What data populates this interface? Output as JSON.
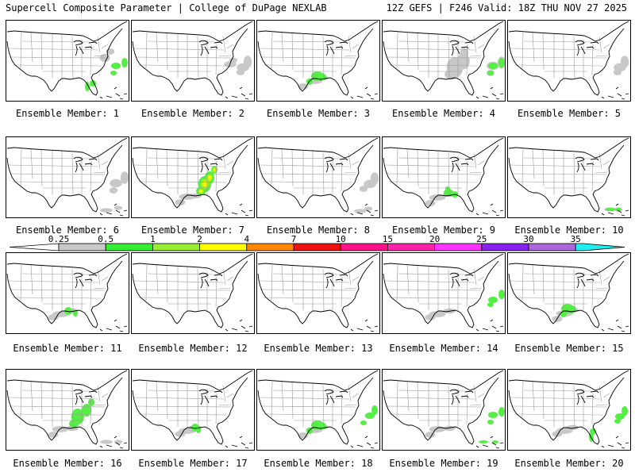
{
  "header": {
    "left": "Supercell Composite Parameter | College of DuPage NEXLAB",
    "right": "12Z GEFS | F246 Valid: 18Z THU NOV 27 2025"
  },
  "colors": {
    "land_outline": "#000000",
    "state_lines": "#999999",
    "gray_shade": "#c8c8c8",
    "green_shade": "#55ee44",
    "lime_shade": "#aaee22",
    "yellow_shade": "#f6f600"
  },
  "colorbar": {
    "labels": [
      "0.25",
      "0.5",
      "1",
      "2",
      "4",
      "7",
      "10",
      "15",
      "20",
      "25",
      "30",
      "35"
    ],
    "colors": [
      "#c8c8c8",
      "#33ee33",
      "#99ee33",
      "#ffff00",
      "#ff8800",
      "#ee1111",
      "#ff1188",
      "#ff22aa",
      "#ff33ff",
      "#8822ee",
      "#aa66dd",
      "#22eeee"
    ]
  },
  "members": [
    {
      "label": "Ensemble Member: 1",
      "scp": [
        {
          "level": "gray",
          "region": "east-coast"
        },
        {
          "level": "green",
          "region": "atlantic"
        },
        {
          "level": "green",
          "region": "florida"
        }
      ]
    },
    {
      "label": "Ensemble Member: 2",
      "scp": [
        {
          "level": "gray",
          "region": "atlantic"
        },
        {
          "level": "gray",
          "region": "mid-atlantic"
        }
      ]
    },
    {
      "label": "Ensemble Member: 3",
      "scp": [
        {
          "level": "gray",
          "region": "gulf-coast"
        },
        {
          "level": "green",
          "region": "texas-louisiana"
        }
      ]
    },
    {
      "label": "Ensemble Member: 4",
      "scp": [
        {
          "level": "gray",
          "region": "atlantic"
        },
        {
          "level": "green",
          "region": "atlantic"
        },
        {
          "level": "gray",
          "region": "southeast"
        }
      ]
    },
    {
      "label": "Ensemble Member: 5",
      "scp": [
        {
          "level": "gray",
          "region": "atlantic"
        }
      ]
    },
    {
      "label": "Ensemble Member: 6",
      "scp": [
        {
          "level": "gray",
          "region": "atlantic"
        },
        {
          "level": "gray",
          "region": "caribbean"
        }
      ]
    },
    {
      "label": "Ensemble Member: 7",
      "scp": [
        {
          "level": "green",
          "region": "southeast"
        },
        {
          "level": "lime",
          "region": "southeast"
        },
        {
          "level": "yellow",
          "region": "southeast"
        },
        {
          "level": "gray",
          "region": "gulf-coast"
        }
      ]
    },
    {
      "label": "Ensemble Member: 8",
      "scp": [
        {
          "level": "gray",
          "region": "caribbean"
        },
        {
          "level": "gray",
          "region": "atlantic"
        }
      ]
    },
    {
      "label": "Ensemble Member: 9",
      "scp": [
        {
          "level": "green",
          "region": "louisiana-mississippi"
        },
        {
          "level": "gray",
          "region": "gulf-coast"
        }
      ]
    },
    {
      "label": "Ensemble Member: 10",
      "scp": [
        {
          "level": "gray",
          "region": "caribbean"
        },
        {
          "level": "green",
          "region": "caribbean"
        }
      ]
    },
    {
      "label": "Ensemble Member: 11",
      "scp": [
        {
          "level": "green",
          "region": "louisiana"
        },
        {
          "level": "gray",
          "region": "gulf-coast"
        }
      ]
    },
    {
      "label": "Ensemble Member: 12",
      "scp": []
    },
    {
      "label": "Ensemble Member: 13",
      "scp": []
    },
    {
      "label": "Ensemble Member: 14",
      "scp": [
        {
          "level": "gray",
          "region": "gulf-coast"
        },
        {
          "level": "green",
          "region": "atlantic"
        }
      ]
    },
    {
      "label": "Ensemble Member: 15",
      "scp": [
        {
          "level": "green",
          "region": "texas-louisiana"
        },
        {
          "level": "gray",
          "region": "gulf-coast"
        }
      ]
    },
    {
      "label": "Ensemble Member: 16",
      "scp": [
        {
          "level": "green",
          "region": "southeast"
        },
        {
          "level": "gray",
          "region": "gulf-coast"
        },
        {
          "level": "gray",
          "region": "caribbean"
        }
      ]
    },
    {
      "label": "Ensemble Member: 17",
      "scp": [
        {
          "level": "green",
          "region": "louisiana"
        },
        {
          "level": "gray",
          "region": "gulf-coast"
        }
      ]
    },
    {
      "label": "Ensemble Member: 18",
      "scp": [
        {
          "level": "green",
          "region": "texas-louisiana"
        },
        {
          "level": "green",
          "region": "atlantic"
        },
        {
          "level": "gray",
          "region": "gulf-coast"
        }
      ]
    },
    {
      "label": "Ensemble Member: 19",
      "scp": [
        {
          "level": "green",
          "region": "caribbean"
        },
        {
          "level": "gray",
          "region": "gulf-coast"
        },
        {
          "level": "green",
          "region": "atlantic"
        }
      ]
    },
    {
      "label": "Ensemble Member: 20",
      "scp": [
        {
          "level": "green",
          "region": "florida"
        },
        {
          "level": "green",
          "region": "atlantic"
        },
        {
          "level": "gray",
          "region": "gulf-coast"
        }
      ]
    }
  ]
}
